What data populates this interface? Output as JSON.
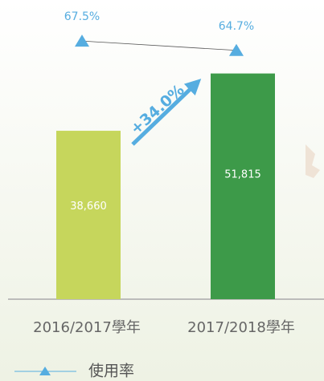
{
  "chart_data": {
    "type": "bar-line",
    "categories": [
      "2016/2017學年",
      "2017/2018學年"
    ],
    "series": [
      {
        "type": "bar",
        "values": [
          38660,
          51815
        ],
        "value_labels": [
          "38,660",
          "51,815"
        ],
        "colors": [
          "#c6d65c",
          "#3d9a49"
        ]
      },
      {
        "type": "line",
        "name": "使用率",
        "axis": "y2",
        "color": "#56ade0",
        "values": [
          67.5,
          64.7
        ],
        "value_labels": [
          "67.5%",
          "64.7%"
        ]
      }
    ],
    "annotation": "+34.0%",
    "ylim": [
      0,
      65000
    ],
    "y2lim": [
      -10,
      75
    ]
  }
}
